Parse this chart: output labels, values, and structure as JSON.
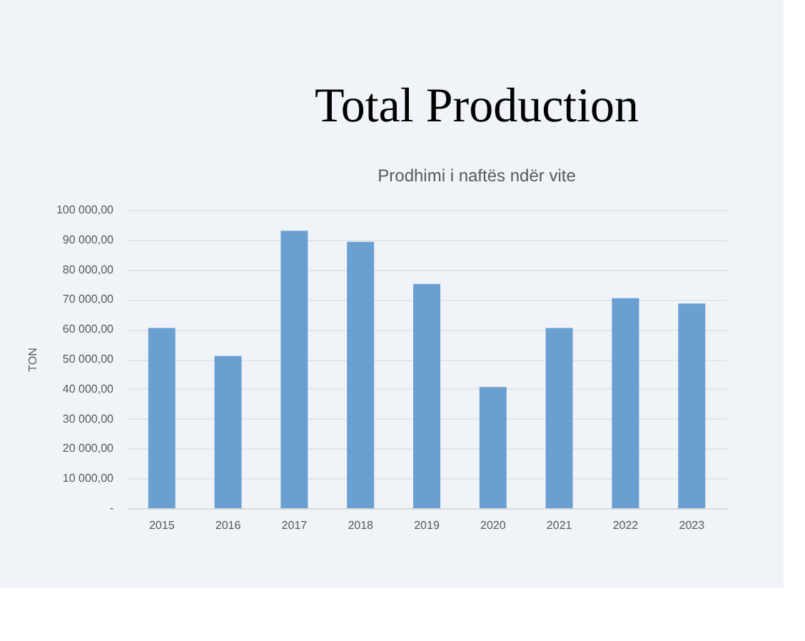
{
  "chart_data": {
    "type": "bar",
    "title": "Total Production",
    "subtitle": "Prodhimi i naftës ndër vite",
    "ylabel": "TON",
    "categories": [
      "2015",
      "2016",
      "2017",
      "2018",
      "2019",
      "2020",
      "2021",
      "2022",
      "2023"
    ],
    "values": [
      60400,
      51000,
      93000,
      89300,
      75200,
      40600,
      60400,
      70400,
      68600
    ],
    "color": "#6a9fd1",
    "ylim": [
      0,
      100000
    ],
    "yticks": [
      {
        "value": 0,
        "label": "-"
      },
      {
        "value": 10000,
        "label": "10 000,00"
      },
      {
        "value": 20000,
        "label": "20 000,00"
      },
      {
        "value": 30000,
        "label": "30 000,00"
      },
      {
        "value": 40000,
        "label": "40 000,00"
      },
      {
        "value": 50000,
        "label": "50 000,00"
      },
      {
        "value": 60000,
        "label": "60 000,00"
      },
      {
        "value": 70000,
        "label": "70 000,00"
      },
      {
        "value": 80000,
        "label": "80 000,00"
      },
      {
        "value": 90000,
        "label": "90 000,00"
      },
      {
        "value": 100000,
        "label": "100 000,00"
      }
    ],
    "grid": "y"
  }
}
